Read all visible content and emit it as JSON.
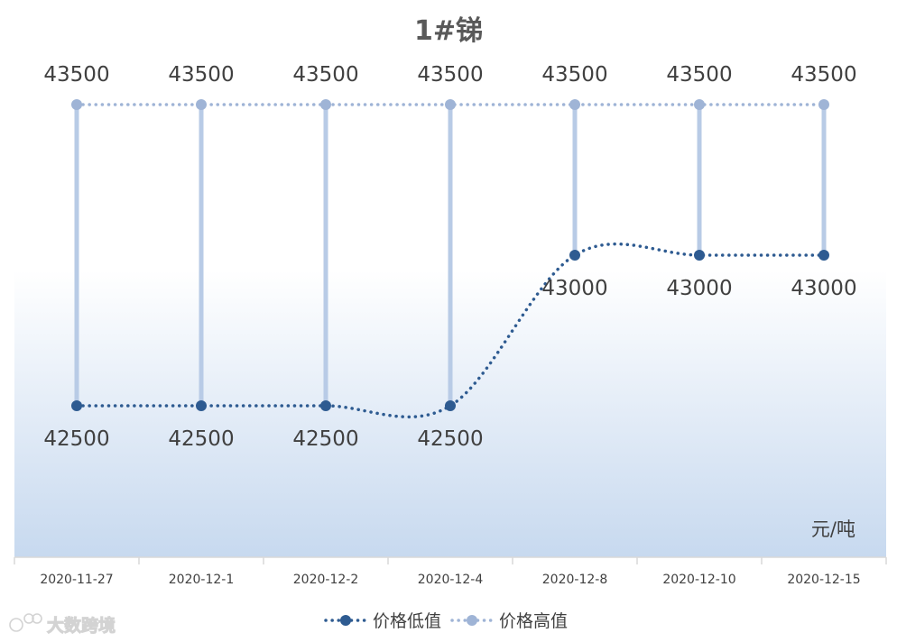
{
  "chart_data": {
    "type": "line",
    "title": "1#锑",
    "unit": "元/吨",
    "categories": [
      "2020-11-27",
      "2020-12-1",
      "2020-12-2",
      "2020-12-4",
      "2020-12-8",
      "2020-12-10",
      "2020-12-15"
    ],
    "series": [
      {
        "name": "价格低值",
        "values": [
          42500,
          42500,
          42500,
          42500,
          43000,
          43000,
          43000
        ],
        "color": "#2e5b91"
      },
      {
        "name": "价格高值",
        "values": [
          43500,
          43500,
          43500,
          43500,
          43500,
          43500,
          43500
        ],
        "color": "#9fb4d6"
      }
    ],
    "high_low_lines_color": "#b8cbe6",
    "background_gradient": [
      "#ffffff",
      "#c7d9ef"
    ],
    "legend_position": "bottom",
    "grid": false,
    "data_labels": true
  },
  "watermark": {
    "text": "大数跨境"
  }
}
